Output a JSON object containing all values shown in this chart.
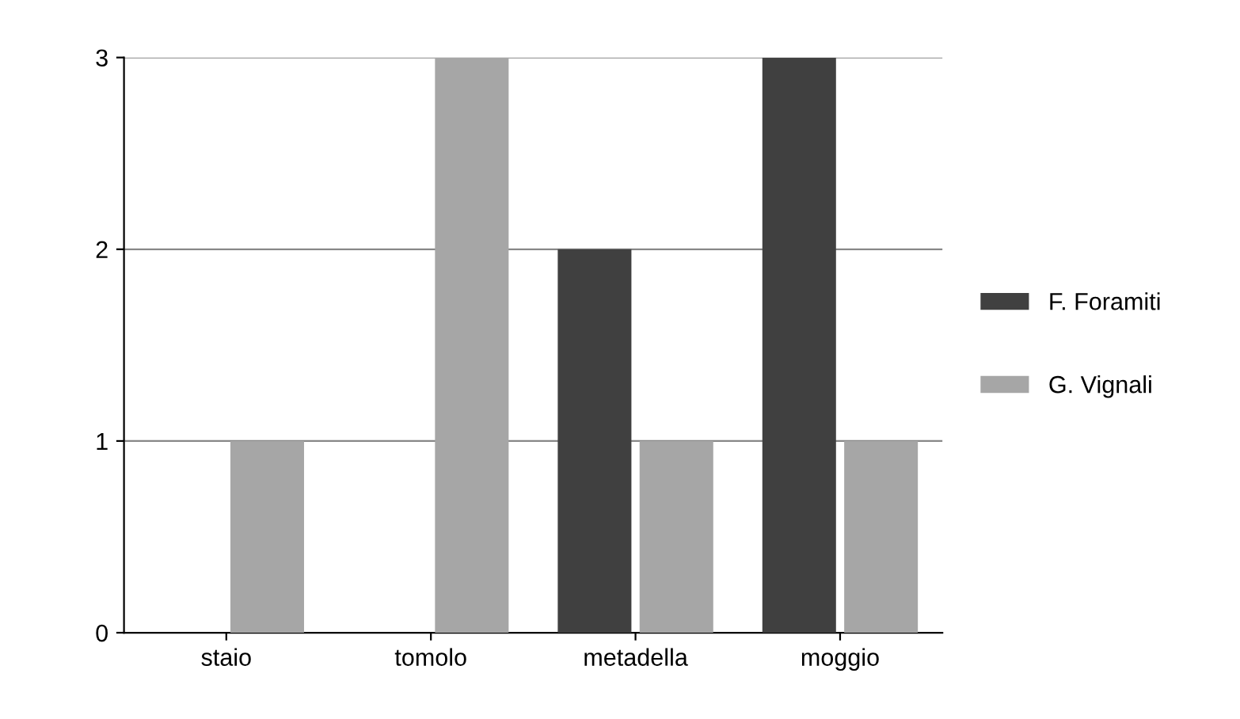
{
  "chart_data": {
    "type": "bar",
    "categories": [
      "staio",
      "tomolo",
      "metadella",
      "moggio"
    ],
    "series": [
      {
        "name": "F. Foramiti",
        "color": "#404040",
        "values": [
          0,
          0,
          2,
          3
        ]
      },
      {
        "name": "G. Vignali",
        "color": "#a6a6a6",
        "values": [
          1,
          3,
          1,
          1
        ]
      }
    ],
    "ylim": [
      0,
      3
    ],
    "yticks": [
      0,
      1,
      2,
      3
    ],
    "grid": "y",
    "legend": "right"
  }
}
